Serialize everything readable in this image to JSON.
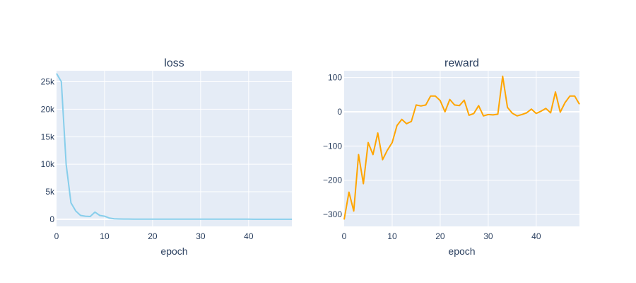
{
  "chart_data": [
    {
      "type": "line",
      "title": "loss",
      "xlabel": "epoch",
      "ylabel": "",
      "color": "#87ceeb",
      "xlim": [
        0,
        49
      ],
      "ylim": [
        -1300,
        27000
      ],
      "xticks": [
        0,
        10,
        20,
        30,
        40
      ],
      "yticks": [
        0,
        5000,
        10000,
        15000,
        20000,
        25000
      ],
      "ytick_labels": [
        "0",
        "5k",
        "10k",
        "15k",
        "20k",
        "25k"
      ],
      "grid": true,
      "x": [
        0,
        1,
        2,
        3,
        4,
        5,
        6,
        7,
        8,
        9,
        10,
        11,
        12,
        13,
        14,
        15,
        16,
        17,
        18,
        19,
        20,
        21,
        22,
        23,
        24,
        25,
        26,
        27,
        28,
        29,
        30,
        31,
        32,
        33,
        34,
        35,
        36,
        37,
        38,
        39,
        40,
        41,
        42,
        43,
        44,
        45,
        46,
        47,
        48,
        49
      ],
      "y": [
        26500,
        25000,
        10000,
        3000,
        1500,
        700,
        550,
        500,
        1300,
        700,
        550,
        200,
        80,
        50,
        40,
        35,
        30,
        30,
        25,
        25,
        25,
        20,
        20,
        20,
        20,
        20,
        20,
        20,
        20,
        20,
        20,
        20,
        20,
        20,
        20,
        20,
        20,
        20,
        20,
        20,
        15,
        5,
        5,
        5,
        5,
        5,
        5,
        5,
        5,
        5
      ]
    },
    {
      "type": "line",
      "title": "reward",
      "xlabel": "epoch",
      "ylabel": "",
      "color": "#ffa500",
      "xlim": [
        0,
        49
      ],
      "ylim": [
        -335,
        120
      ],
      "xticks": [
        0,
        10,
        20,
        30,
        40
      ],
      "yticks": [
        -300,
        -200,
        -100,
        0,
        100
      ],
      "ytick_labels": [
        "−300",
        "−200",
        "−100",
        "0",
        "100"
      ],
      "grid": true,
      "x": [
        0,
        1,
        2,
        3,
        4,
        5,
        6,
        7,
        8,
        9,
        10,
        11,
        12,
        13,
        14,
        15,
        16,
        17,
        18,
        19,
        20,
        21,
        22,
        23,
        24,
        25,
        26,
        27,
        28,
        29,
        30,
        31,
        32,
        33,
        34,
        35,
        36,
        37,
        38,
        39,
        40,
        41,
        42,
        43,
        44,
        45,
        46,
        47,
        48,
        49
      ],
      "y": [
        -315,
        -235,
        -290,
        -125,
        -210,
        -90,
        -125,
        -62,
        -140,
        -112,
        -90,
        -40,
        -22,
        -35,
        -28,
        20,
        17,
        20,
        46,
        46,
        33,
        0,
        36,
        20,
        18,
        34,
        -10,
        -5,
        18,
        -12,
        -8,
        -9,
        -7,
        104,
        13,
        -4,
        -12,
        -8,
        -3,
        8,
        -5,
        2,
        10,
        -3,
        58,
        -1,
        27,
        46,
        46,
        22
      ]
    }
  ]
}
